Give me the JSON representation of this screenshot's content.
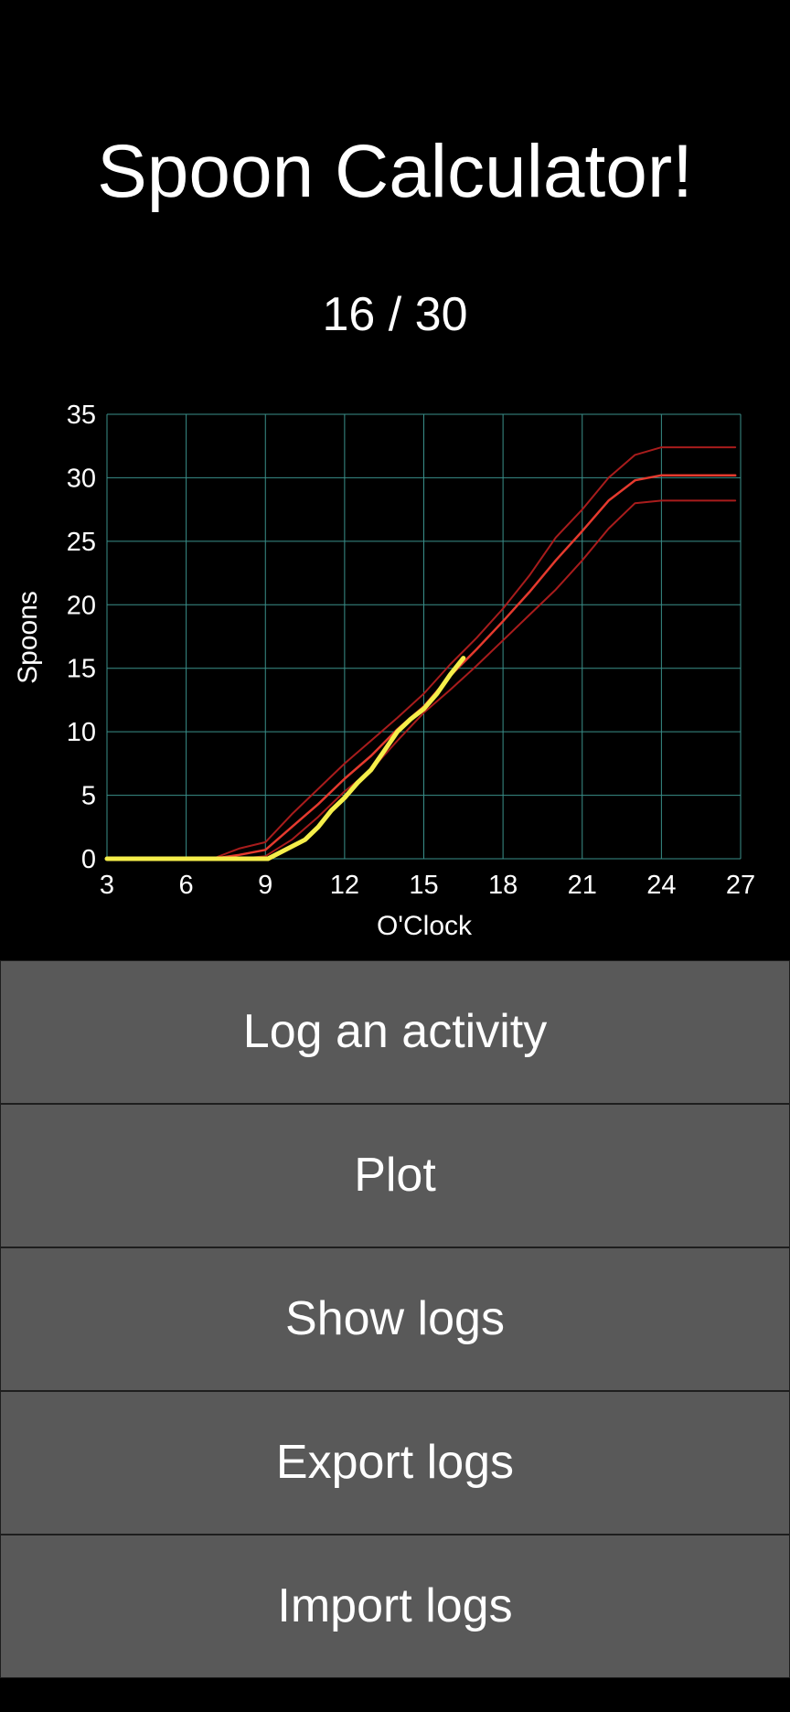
{
  "app": {
    "title": "Spoon Calculator!",
    "spoon_count": "16 / 30"
  },
  "chart_data": {
    "type": "line",
    "xlabel": "O'Clock",
    "ylabel": "Spoons",
    "xlim": [
      3,
      27
    ],
    "ylim": [
      0,
      35
    ],
    "xticks": [
      3,
      6,
      9,
      12,
      15,
      18,
      21,
      24,
      27
    ],
    "yticks": [
      0,
      5,
      10,
      15,
      20,
      25,
      30,
      35
    ],
    "grid": true,
    "series": [
      {
        "role": "upper-band",
        "color": "#a81c1c",
        "x": [
          3,
          7,
          8,
          9,
          10,
          11,
          12,
          13,
          14,
          15,
          16,
          17,
          18,
          19,
          20,
          21,
          22,
          23,
          24,
          26.8
        ],
        "y": [
          0,
          0,
          0.8,
          1.3,
          3.5,
          5.5,
          7.5,
          9.3,
          11.1,
          13.0,
          15.3,
          17.4,
          19.7,
          22.3,
          25.3,
          27.5,
          30.0,
          31.8,
          32.4,
          32.4
        ]
      },
      {
        "role": "median",
        "color": "#e53a2e",
        "x": [
          3,
          7,
          8,
          9,
          10,
          11,
          12,
          13,
          14,
          15,
          16,
          17,
          18,
          19,
          20,
          21,
          22,
          23,
          24,
          26.8
        ],
        "y": [
          0,
          0,
          0.3,
          0.7,
          2.5,
          4.3,
          6.3,
          8.1,
          10.2,
          12.0,
          14.4,
          16.5,
          18.7,
          21.0,
          23.5,
          25.8,
          28.2,
          29.8,
          30.2,
          30.2
        ]
      },
      {
        "role": "lower-band",
        "color": "#a81c1c",
        "x": [
          3,
          7,
          8,
          9,
          10,
          11,
          12,
          13,
          14,
          15,
          16,
          17,
          18,
          19,
          20,
          21,
          22,
          23,
          24,
          26.8
        ],
        "y": [
          0,
          0,
          0,
          0.2,
          1.5,
          3.3,
          5.3,
          7.0,
          9.3,
          11.5,
          13.3,
          15.2,
          17.2,
          19.2,
          21.2,
          23.5,
          26.0,
          28.0,
          28.2,
          28.2
        ]
      },
      {
        "role": "today",
        "color": "#f5ee4a",
        "x": [
          3,
          9.1,
          10.5,
          11,
          11.5,
          12,
          12.5,
          13,
          13.5,
          14,
          14.5,
          15,
          15.5,
          16,
          16.5
        ],
        "y": [
          0,
          0,
          1.5,
          2.5,
          3.8,
          4.8,
          6.0,
          7.0,
          8.5,
          10.0,
          11.0,
          11.8,
          13.0,
          14.5,
          15.8
        ]
      }
    ],
    "colors": {
      "grid": "#3a8f8a",
      "axis_text": "#ffffff"
    }
  },
  "buttons": [
    {
      "label": "Log an activity"
    },
    {
      "label": "Plot"
    },
    {
      "label": "Show logs"
    },
    {
      "label": "Export logs"
    },
    {
      "label": "Import logs"
    }
  ]
}
